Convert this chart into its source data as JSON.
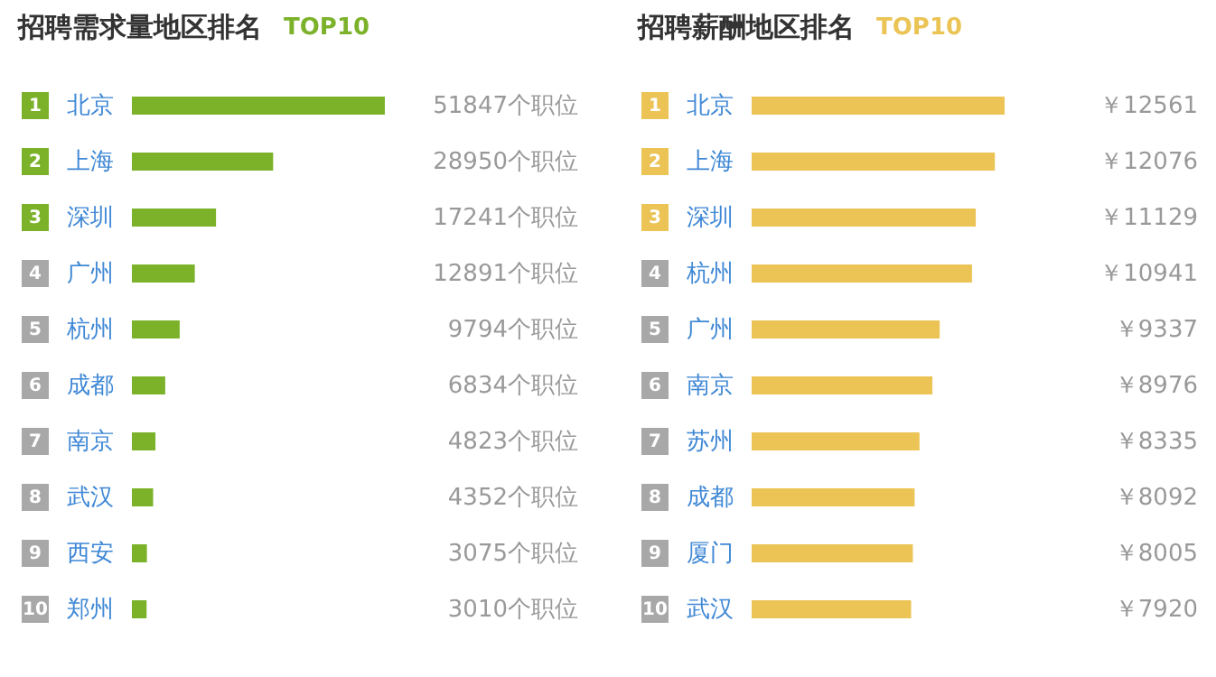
{
  "chart_data": [
    {
      "type": "bar",
      "orientation": "horizontal",
      "title": "招聘需求量地区排名",
      "subtitle": "TOP10",
      "color": "#7cb22a",
      "categories": [
        "北京",
        "上海",
        "深圳",
        "广州",
        "杭州",
        "成都",
        "南京",
        "武汉",
        "西安",
        "郑州"
      ],
      "values": [
        51847,
        28950,
        17241,
        12891,
        9794,
        6834,
        4823,
        4352,
        3075,
        3010
      ],
      "value_labels": [
        "51847个职位",
        "28950个职位",
        "17241个职位",
        "12891个职位",
        "9794个职位",
        "6834个职位",
        "4823个职位",
        "4352个职位",
        "3075个职位",
        "3010个职位"
      ],
      "annotations": [
        "1",
        "2",
        "3",
        "4",
        "5",
        "6",
        "7",
        "8",
        "9",
        "10"
      ]
    },
    {
      "type": "bar",
      "orientation": "horizontal",
      "title": "招聘薪酬地区排名",
      "subtitle": "TOP10",
      "color": "#ebc455",
      "categories": [
        "北京",
        "上海",
        "深圳",
        "杭州",
        "广州",
        "南京",
        "苏州",
        "成都",
        "厦门",
        "武汉"
      ],
      "values": [
        12561,
        12076,
        11129,
        10941,
        9337,
        8976,
        8335,
        8092,
        8005,
        7920
      ],
      "value_labels": [
        "￥12561",
        "￥12076",
        "￥11129",
        "￥10941",
        "￥9337",
        "￥8976",
        "￥8335",
        "￥8092",
        "￥8005",
        "￥7920"
      ],
      "annotations": [
        "1",
        "2",
        "3",
        "4",
        "5",
        "6",
        "7",
        "8",
        "9",
        "10"
      ]
    }
  ]
}
